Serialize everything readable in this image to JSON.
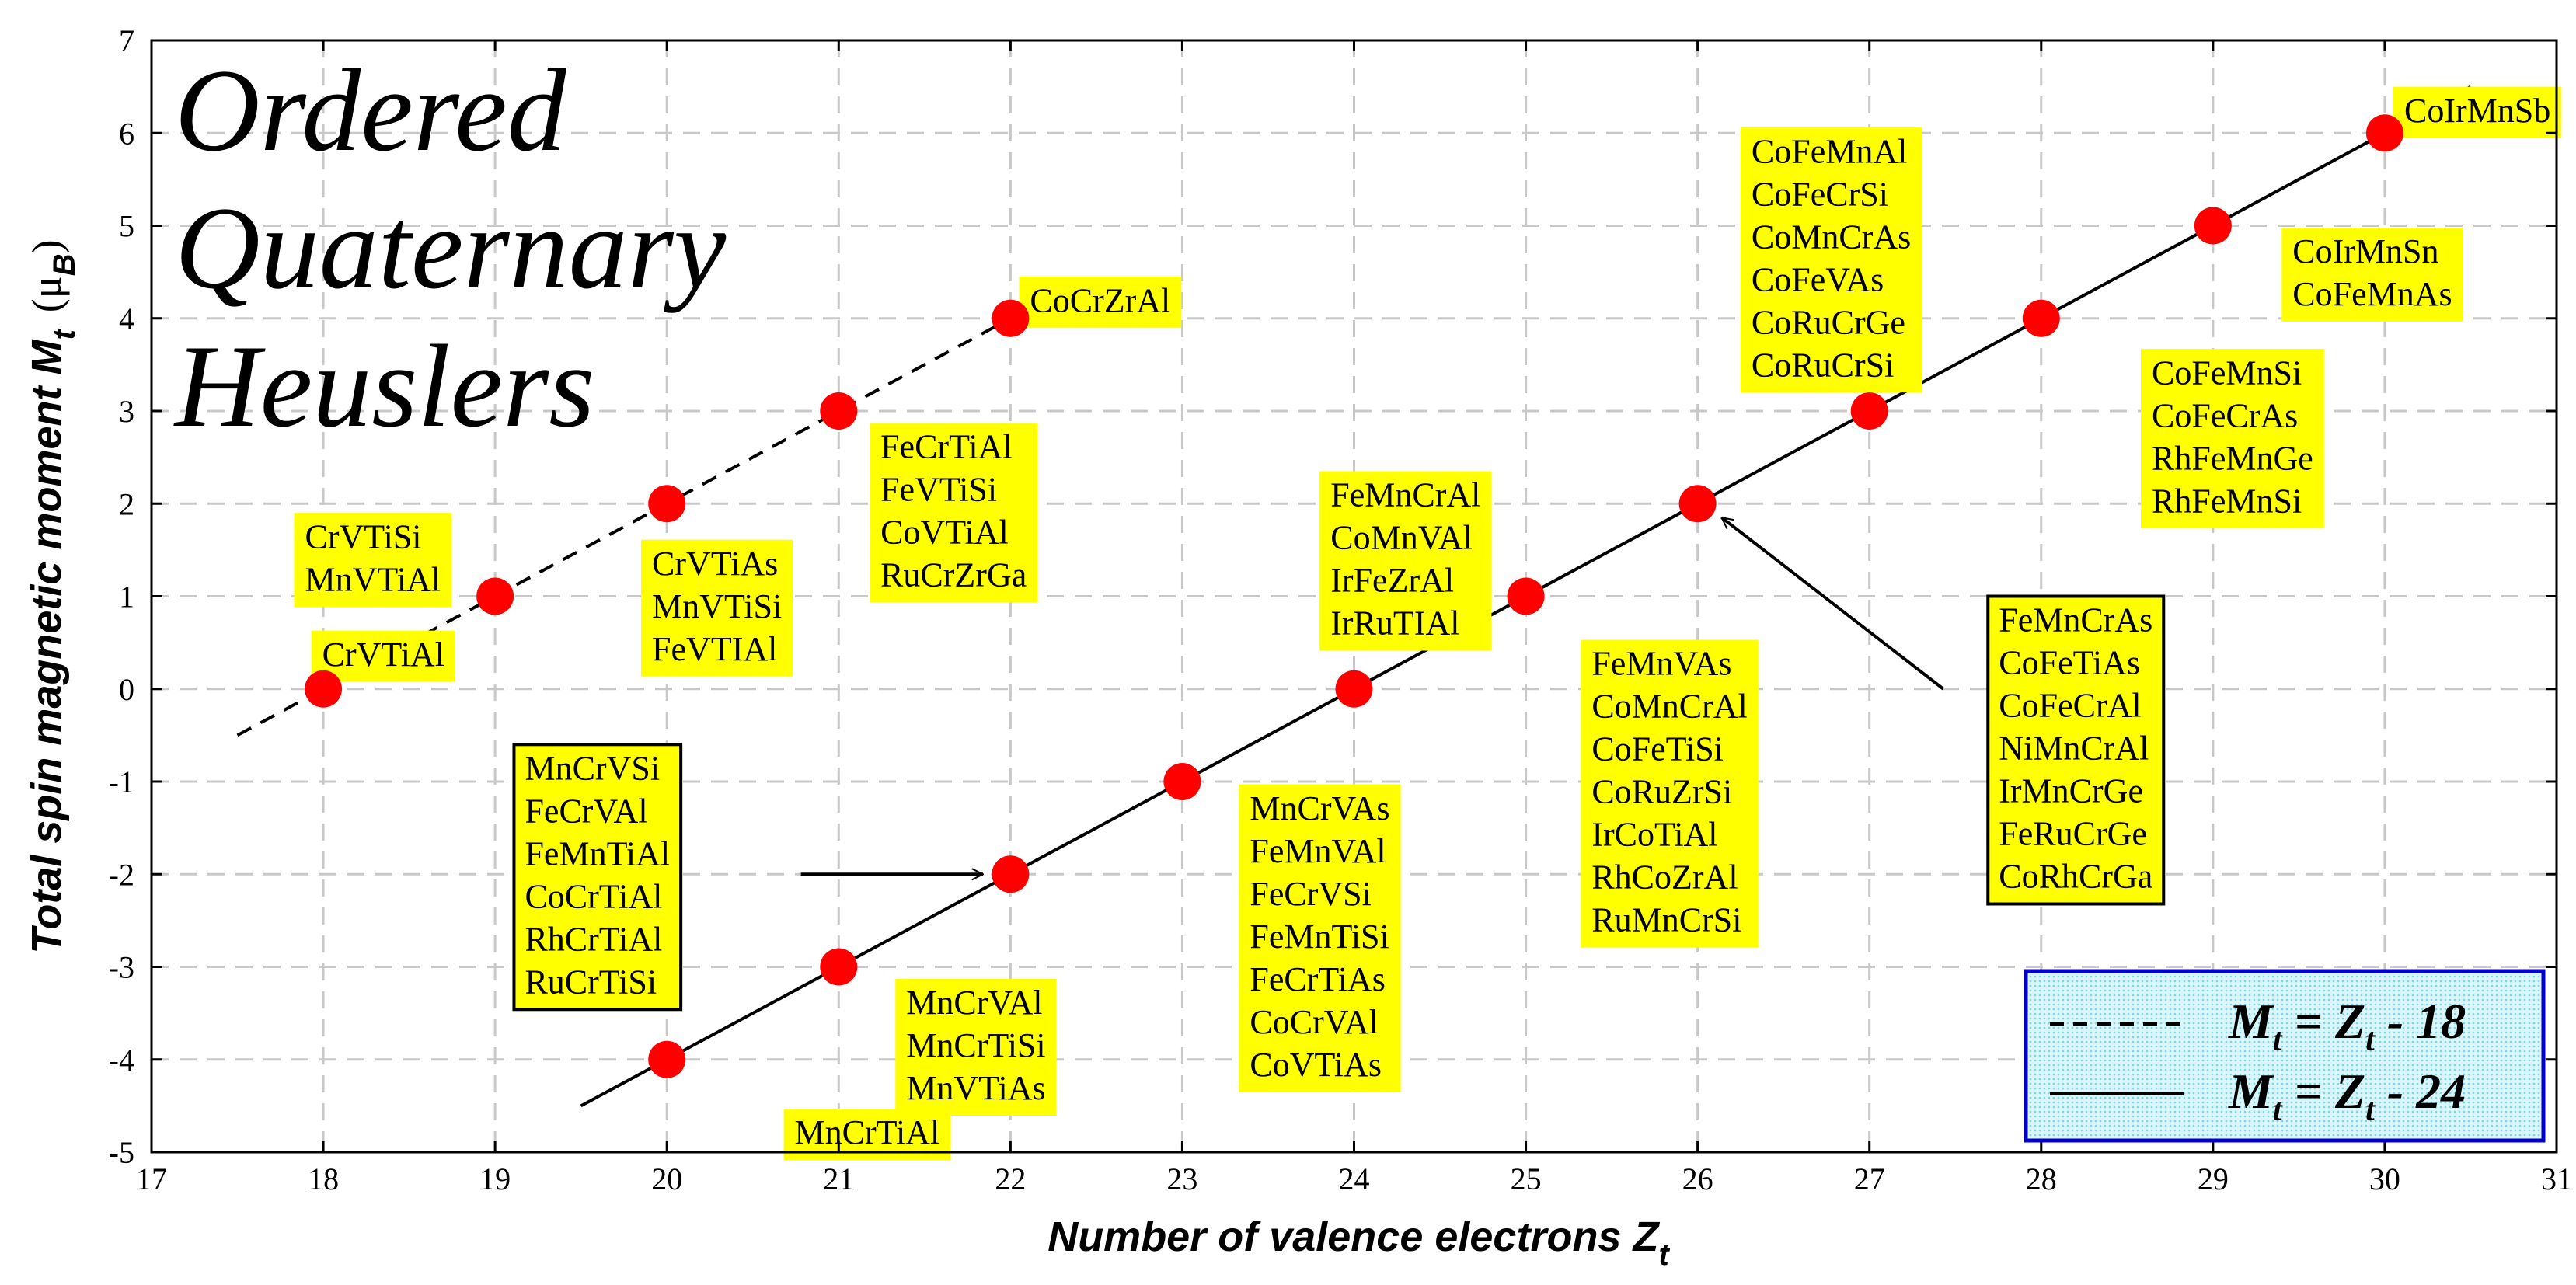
{
  "chart_data": {
    "type": "scatter",
    "title": "Ordered Quaternary Heuslers",
    "title_lines": [
      "Ordered",
      "Quaternary",
      "Heuslers"
    ],
    "xlabel": "Number of valence electrons Z",
    "xlabel_sub": "t",
    "ylabel": "Total spin magnetic moment M",
    "ylabel_sub": "t",
    "ylabel_unit": "(μ",
    "ylabel_unit_sub": "B",
    "ylabel_unit_close": ")",
    "xlim": [
      17,
      31
    ],
    "ylim": [
      -5,
      7
    ],
    "xticks": [
      "17",
      "18",
      "19",
      "20",
      "21",
      "22",
      "23",
      "24",
      "25",
      "26",
      "27",
      "28",
      "29",
      "30",
      "31"
    ],
    "yticks": [
      "-5",
      "-4",
      "-3",
      "-2",
      "-1",
      "0",
      "1",
      "2",
      "3",
      "4",
      "5",
      "6",
      "7"
    ],
    "grid": true,
    "series": [
      {
        "name": "M_t = Z_t - 18",
        "style": "dashed",
        "line_x": [
          17.5,
          22.4
        ],
        "points": [
          {
            "x": 18,
            "y": 0
          },
          {
            "x": 19,
            "y": 1
          },
          {
            "x": 20,
            "y": 2
          },
          {
            "x": 21,
            "y": 3
          },
          {
            "x": 22,
            "y": 4
          }
        ]
      },
      {
        "name": "M_t = Z_t - 24",
        "style": "solid",
        "line_x": [
          19.5,
          30.5
        ],
        "points": [
          {
            "x": 20,
            "y": -4
          },
          {
            "x": 21,
            "y": -3
          },
          {
            "x": 22,
            "y": -2
          },
          {
            "x": 23,
            "y": -1
          },
          {
            "x": 24,
            "y": 0
          },
          {
            "x": 25,
            "y": 1
          },
          {
            "x": 26,
            "y": 2
          },
          {
            "x": 27,
            "y": 3
          },
          {
            "x": 28,
            "y": 4
          },
          {
            "x": 29,
            "y": 5
          },
          {
            "x": 30,
            "y": 6
          }
        ]
      }
    ],
    "annotations": [
      {
        "ax": 17.93,
        "ay": 0.63,
        "lines": [
          "CrVTiAl"
        ]
      },
      {
        "ax": 17.83,
        "ay": 1.9,
        "lines": [
          "CrVTiSi",
          "MnVTiAl"
        ]
      },
      {
        "ax": 19.85,
        "ay": 1.61,
        "lines": [
          "CrVTiAs",
          "MnVTiSi",
          "FeVTIAl"
        ]
      },
      {
        "ax": 21.18,
        "ay": 2.87,
        "lines": [
          "FeCrTiAl",
          "FeVTiSi",
          "CoVTiAl",
          "RuCrZrGa"
        ]
      },
      {
        "ax": 22.05,
        "ay": 4.45,
        "lines": [
          "CoCrZrAl"
        ]
      },
      {
        "ax": 23.8,
        "ay": 2.35,
        "lines": [
          "FeMnCrAl",
          "CoMnVAl",
          "IrFeZrAl",
          "IrRuTIAl"
        ]
      },
      {
        "ax": 26.25,
        "ay": 6.06,
        "lines": [
          "CoFeMnAl",
          "CoFeCrSi",
          "CoMnCrAs",
          "CoFeVAs",
          "CoRuCrGe",
          "CoRuCrSi"
        ]
      },
      {
        "ax": 30.05,
        "ay": 6.5,
        "lines": [
          "CoIrMnSb"
        ]
      },
      {
        "ax": 29.4,
        "ay": 4.98,
        "lines": [
          "CoIrMnSn",
          "CoFeMnAs"
        ]
      },
      {
        "ax": 28.58,
        "ay": 3.67,
        "lines": [
          "CoFeMnSi",
          "CoFeCrAs",
          "RhFeMnGe",
          "RhFeMnSi"
        ]
      },
      {
        "ax": 25.32,
        "ay": 0.53,
        "lines": [
          "FeMnVAs",
          "CoMnCrAl",
          "CoFeTiSi",
          "CoRuZrSi",
          "IrCoTiAl",
          "RhCoZrAl",
          "RuMnCrSi"
        ]
      },
      {
        "ax": 23.33,
        "ay": -1.03,
        "lines": [
          "MnCrVAs",
          "FeMnVAl",
          "FeCrVSi",
          "FeMnTiSi",
          "FeCrTiAs",
          "CoCrVAl",
          "CoVTiAs"
        ]
      },
      {
        "ax": 21.33,
        "ay": -3.13,
        "lines": [
          "MnCrVAl",
          "MnCrTiSi",
          "MnVTiAs"
        ]
      },
      {
        "ax": 20.68,
        "ay": -4.53,
        "lines": [
          "MnCrTiAl"
        ]
      }
    ],
    "boxed_annotations": [
      {
        "ax": 19.11,
        "ay": -0.6,
        "lines": [
          "MnCrVSi",
          "FeCrVAl",
          "FeMnTiAl",
          "CoCrTiAl",
          "RhCrTiAl",
          "RuCrTiSi"
        ],
        "arrow_from": [
          20.78,
          -2.0
        ],
        "arrow_to": [
          21.84,
          -2.0
        ]
      },
      {
        "ax": 27.69,
        "ay": 1.0,
        "lines": [
          "FeMnCrAs",
          "CoFeTiAs",
          "CoFeCrAl",
          "NiMnCrAl",
          "IrMnCrGe",
          "FeRuCrGe",
          "CoRhCrGa"
        ],
        "arrow_from": [
          27.43,
          0.0
        ],
        "arrow_to": [
          26.14,
          1.85
        ]
      }
    ],
    "legend": {
      "position": "bottom-right",
      "entries": [
        {
          "style": "dashed",
          "label_M": "M",
          "sub1": "t",
          "label_mid": " = Z",
          "sub2": "t",
          "label_end": " - 18"
        },
        {
          "style": "solid",
          "label_M": "M",
          "sub1": "t",
          "label_mid": " = Z",
          "sub2": "t",
          "label_end": " - 24"
        }
      ]
    },
    "colors": {
      "point": "#ff0000",
      "label_bg": "#ffff00",
      "grid": "#c8c8c8",
      "legend_border": "#0000cc",
      "legend_fill": "#bfeef5"
    }
  }
}
